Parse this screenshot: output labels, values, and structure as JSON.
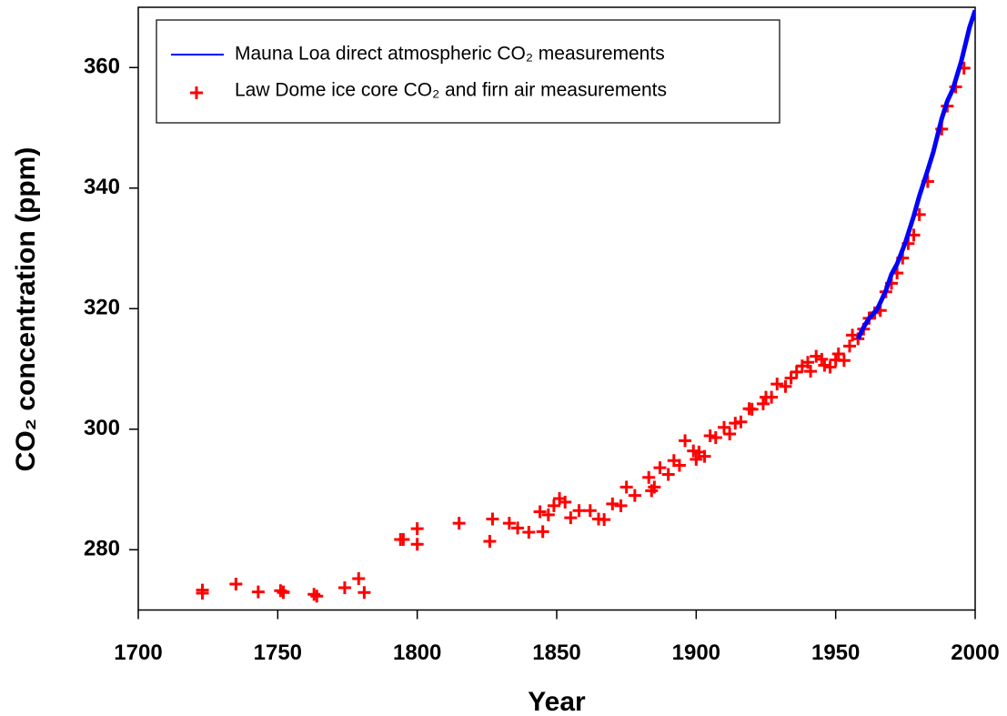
{
  "chart_data": {
    "type": "scatter",
    "x_label": "Year",
    "y_label": "CO₂ concentration (ppm)",
    "xlim": [
      1700,
      2000
    ],
    "ylim": [
      270,
      370
    ],
    "xticks": [
      1700,
      1750,
      1800,
      1850,
      1900,
      1950,
      2000
    ],
    "yticks": [
      280,
      300,
      320,
      340,
      360
    ],
    "legend_position": "upper left",
    "grid": false,
    "series": [
      {
        "name": "Mauna Loa direct atmospheric CO₂ measurements",
        "color": "#0000ff",
        "type": "line",
        "x": [
          1958,
          1960,
          1962,
          1965,
          1968,
          1970,
          1972,
          1975,
          1978,
          1980,
          1983,
          1985,
          1988,
          1990,
          1992,
          1995,
          1998,
          2000
        ],
        "values": [
          315,
          316.9,
          318.4,
          320.0,
          323.0,
          325.7,
          327.4,
          331.0,
          335.4,
          338.7,
          343.0,
          346.0,
          351.5,
          354.4,
          356.4,
          361.0,
          366.7,
          369.5
        ]
      },
      {
        "name": "Law Dome ice core CO₂ and firn air measurements",
        "color": "#ff0000",
        "type": "scatter",
        "marker": "+",
        "x": [
          1723,
          1723,
          1735,
          1743,
          1751,
          1752,
          1752,
          1763,
          1764,
          1774,
          1779,
          1781,
          1794,
          1795,
          1800,
          1800,
          1815,
          1826,
          1827,
          1833,
          1836,
          1840,
          1844,
          1845,
          1847,
          1849,
          1851,
          1853,
          1855,
          1858,
          1862,
          1865,
          1867,
          1870,
          1873,
          1875,
          1878,
          1883,
          1884,
          1885,
          1887,
          1890,
          1892,
          1894,
          1896,
          1899,
          1900,
          1901,
          1903,
          1905,
          1907,
          1910,
          1912,
          1914,
          1916,
          1919,
          1920,
          1924,
          1925,
          1927,
          1929,
          1932,
          1934,
          1936,
          1938,
          1940,
          1941,
          1943,
          1945,
          1946,
          1948,
          1950,
          1951,
          1953,
          1955,
          1956,
          1958,
          1960,
          1962,
          1964,
          1966,
          1968,
          1970,
          1972,
          1974,
          1976,
          1978,
          1980,
          1983,
          1988,
          1990,
          1993,
          1996
        ],
        "values": [
          273.3,
          272.8,
          274.3,
          273.0,
          273.2,
          273.0,
          272.9,
          272.6,
          272.3,
          273.7,
          275.2,
          272.9,
          281.7,
          281.7,
          283.5,
          280.9,
          284.4,
          281.4,
          285.1,
          284.4,
          283.6,
          282.9,
          286.3,
          283.0,
          285.8,
          287.3,
          288.5,
          287.9,
          285.3,
          286.5,
          286.5,
          285.1,
          285.0,
          287.6,
          287.3,
          290.4,
          289.0,
          292.0,
          289.8,
          290.4,
          293.6,
          292.5,
          294.8,
          294.0,
          298.1,
          296.4,
          295.0,
          296.2,
          295.5,
          298.9,
          298.6,
          300.3,
          299.2,
          301.0,
          301.2,
          303.4,
          303.3,
          304.2,
          305.3,
          305.3,
          307.5,
          307.1,
          308.5,
          309.5,
          310.5,
          311.1,
          309.6,
          312.1,
          311.6,
          310.6,
          310.3,
          311.5,
          312.5,
          311.4,
          313.8,
          315.6,
          315.0,
          316.6,
          318.4,
          319.3,
          319.7,
          322.8,
          324.2,
          325.9,
          328.4,
          330.8,
          332.2,
          335.6,
          341.1,
          349.8,
          353.6,
          356.8,
          359.9
        ]
      }
    ]
  }
}
